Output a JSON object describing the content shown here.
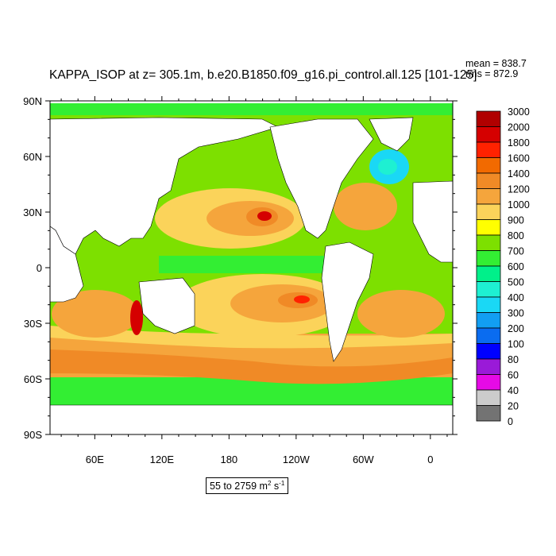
{
  "title": "KAPPA_ISOP at z= 305.1m, b.e20.B1850.f09_g16.pi_control.all.125 [101-125]",
  "stats": {
    "mean": "mean = 838.7",
    "rms": "rms = 872.9"
  },
  "range_text": {
    "prefix": "55 to 2759 m",
    "unit_sup1": "2",
    "mid": " s",
    "unit_sup2": "-1"
  },
  "map_data": {
    "projection": "cylindrical equidistant",
    "lon_range": [
      20,
      380
    ],
    "lat_range": [
      -90,
      90
    ],
    "lat_ticks": [
      {
        "value": 90,
        "label": "90N"
      },
      {
        "value": 60,
        "label": "60N"
      },
      {
        "value": 30,
        "label": "30N"
      },
      {
        "value": 0,
        "label": "0"
      },
      {
        "value": -30,
        "label": "30S"
      },
      {
        "value": -60,
        "label": "60S"
      },
      {
        "value": -90,
        "label": "90S"
      }
    ],
    "lon_ticks": [
      {
        "value": 60,
        "label": "60E"
      },
      {
        "value": 120,
        "label": "120E"
      },
      {
        "value": 180,
        "label": "180"
      },
      {
        "value": 240,
        "label": "120W"
      },
      {
        "value": 300,
        "label": "60W"
      },
      {
        "value": 360,
        "label": "0"
      }
    ],
    "colorbar": [
      {
        "label": "3000",
        "color": "#b00000"
      },
      {
        "label": "2000",
        "color": "#d50000"
      },
      {
        "label": "1800",
        "color": "#ff2200"
      },
      {
        "label": "1600",
        "color": "#f26a00"
      },
      {
        "label": "1400",
        "color": "#f08a26"
      },
      {
        "label": "1200",
        "color": "#f5a53c"
      },
      {
        "label": "1000",
        "color": "#fbd35a"
      },
      {
        "label": "900",
        "color": "#ffff00"
      },
      {
        "label": "800",
        "color": "#7de000"
      },
      {
        "label": "700",
        "color": "#33ee33"
      },
      {
        "label": "600",
        "color": "#00f08a"
      },
      {
        "label": "500",
        "color": "#1ef0d2"
      },
      {
        "label": "400",
        "color": "#1ad8f5"
      },
      {
        "label": "300",
        "color": "#129ef2"
      },
      {
        "label": "200",
        "color": "#0a6cf0"
      },
      {
        "label": "100",
        "color": "#0000ff"
      },
      {
        "label": "80",
        "color": "#9a1ad8"
      },
      {
        "label": "60",
        "color": "#e60ae6"
      },
      {
        "label": "40",
        "color": "#cccccc"
      },
      {
        "label": "20",
        "color": "#737373"
      },
      {
        "label": "0",
        "color": ""
      }
    ]
  }
}
